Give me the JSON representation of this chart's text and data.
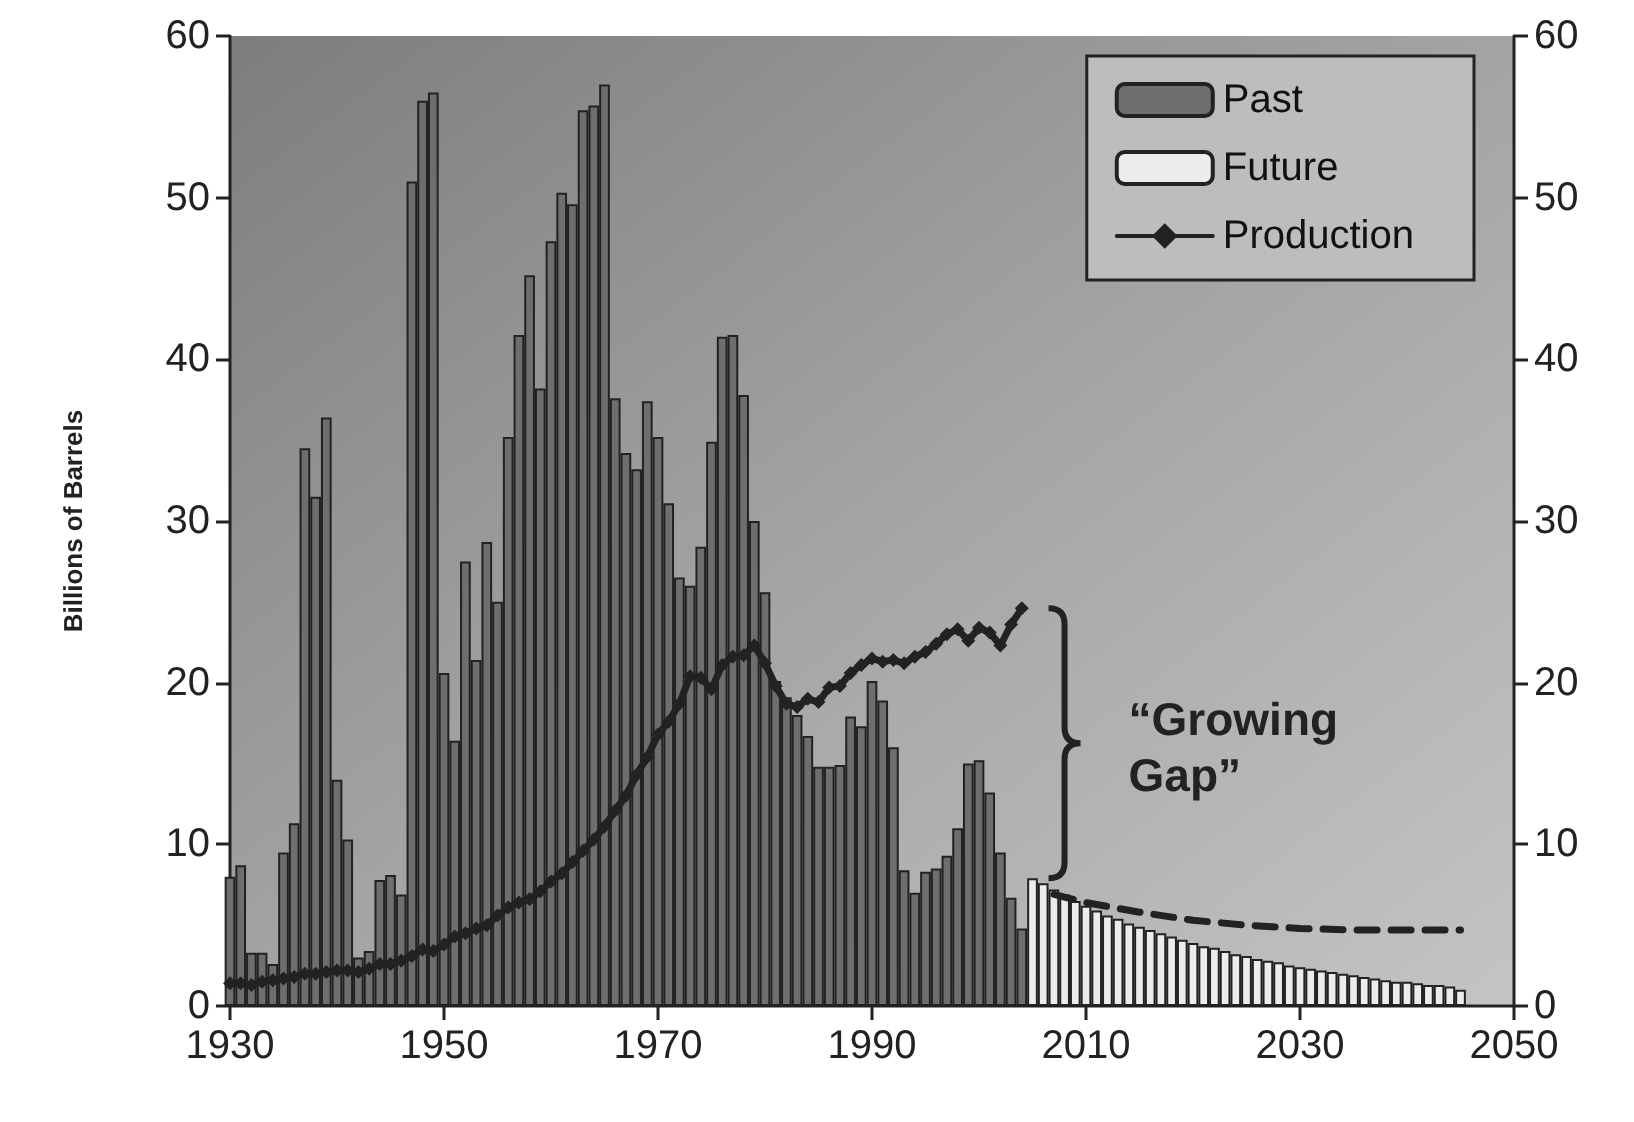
{
  "chart_data": {
    "type": "bar",
    "ylabel": "Billions of Barrels",
    "xlim": [
      1930,
      2050
    ],
    "xticks": [
      1930,
      1950,
      1970,
      1990,
      2010,
      2030,
      2050
    ],
    "ylim": [
      0,
      60
    ],
    "yticks": [
      0,
      10,
      20,
      30,
      40,
      50,
      60
    ],
    "y2lim": [
      0,
      60
    ],
    "y2ticks": [
      0,
      10,
      20,
      30,
      40,
      50,
      60
    ],
    "legend": "top right",
    "grid": false,
    "annotations": [
      "“Growing Gap”"
    ],
    "series": [
      {
        "name": "Past",
        "color": "#6e6e6e",
        "x": [
          1930,
          1931,
          1932,
          1933,
          1934,
          1935,
          1936,
          1937,
          1938,
          1939,
          1940,
          1941,
          1942,
          1943,
          1944,
          1945,
          1946,
          1947,
          1948,
          1949,
          1950,
          1951,
          1952,
          1953,
          1954,
          1955,
          1956,
          1957,
          1958,
          1959,
          1960,
          1961,
          1962,
          1963,
          1964,
          1965,
          1966,
          1967,
          1968,
          1969,
          1970,
          1971,
          1972,
          1973,
          1974,
          1975,
          1976,
          1977,
          1978,
          1979,
          1980,
          1981,
          1982,
          1983,
          1984,
          1985,
          1986,
          1987,
          1988,
          1989,
          1990,
          1991,
          1992,
          1993,
          1994,
          1995,
          1996,
          1997,
          1998,
          1999,
          2000,
          2001,
          2002,
          2003,
          2004
        ],
        "values": [
          8,
          8.7,
          3.3,
          3.3,
          2.6,
          9.5,
          11.3,
          34.5,
          31.5,
          36.4,
          14,
          10.3,
          3,
          3.4,
          7.8,
          8.1,
          6.9,
          51,
          56,
          56.5,
          20.6,
          16.4,
          27.5,
          21.4,
          28.7,
          25,
          35.2,
          41.5,
          45.2,
          38.2,
          47.3,
          50.3,
          49.6,
          55.4,
          55.7,
          57,
          37.6,
          34.2,
          33.2,
          37.4,
          35.2,
          31.1,
          26.5,
          26,
          28.4,
          34.9,
          41.4,
          41.5,
          37.8,
          30,
          25.6,
          20.1,
          19.1,
          18,
          16.7,
          14.8,
          14.8,
          14.9,
          17.9,
          17.3,
          20.1,
          18.9,
          16,
          8.4,
          7,
          8.3,
          8.5,
          9.3,
          11,
          15,
          15.2,
          13.2,
          9.5,
          6.7,
          4.8
        ]
      },
      {
        "name": "Future",
        "color": "#ececec",
        "x": [
          2005,
          2006,
          2007,
          2008,
          2009,
          2010,
          2011,
          2012,
          2013,
          2014,
          2015,
          2016,
          2017,
          2018,
          2019,
          2020,
          2021,
          2022,
          2023,
          2024,
          2025,
          2026,
          2027,
          2028,
          2029,
          2030,
          2031,
          2032,
          2033,
          2034,
          2035,
          2036,
          2037,
          2038,
          2039,
          2040,
          2041,
          2042,
          2043,
          2044,
          2045
        ],
        "values": [
          7.9,
          7.6,
          7.2,
          6.9,
          6.5,
          6.2,
          5.9,
          5.6,
          5.4,
          5.1,
          4.9,
          4.7,
          4.5,
          4.3,
          4.1,
          3.9,
          3.7,
          3.6,
          3.4,
          3.2,
          3.1,
          2.9,
          2.8,
          2.7,
          2.5,
          2.4,
          2.3,
          2.2,
          2.1,
          2,
          1.9,
          1.8,
          1.7,
          1.6,
          1.5,
          1.5,
          1.4,
          1.3,
          1.3,
          1.2,
          1
        ]
      },
      {
        "name": "Production",
        "type": "line",
        "color": "#222222",
        "marker": "diamond",
        "line_style": "solid",
        "x": [
          1930,
          1931,
          1932,
          1933,
          1934,
          1935,
          1936,
          1937,
          1938,
          1939,
          1940,
          1941,
          1942,
          1943,
          1944,
          1945,
          1946,
          1947,
          1948,
          1949,
          1950,
          1951,
          1952,
          1953,
          1954,
          1955,
          1956,
          1957,
          1958,
          1959,
          1960,
          1961,
          1962,
          1963,
          1964,
          1965,
          1966,
          1967,
          1968,
          1969,
          1970,
          1971,
          1972,
          1973,
          1974,
          1975,
          1976,
          1977,
          1978,
          1979,
          1980,
          1981,
          1982,
          1983,
          1984,
          1985,
          1986,
          1987,
          1988,
          1989,
          1990,
          1991,
          1992,
          1993,
          1994,
          1995,
          1996,
          1997,
          1998,
          1999,
          2000,
          2001,
          2002,
          2003,
          2004
        ],
        "values": [
          1.4,
          1.4,
          1.3,
          1.5,
          1.6,
          1.7,
          1.8,
          2,
          2,
          2.1,
          2.2,
          2.2,
          2.1,
          2.3,
          2.6,
          2.6,
          2.8,
          3.1,
          3.5,
          3.4,
          3.8,
          4.3,
          4.5,
          4.8,
          5,
          5.6,
          6.1,
          6.4,
          6.6,
          7.1,
          7.7,
          8.2,
          8.9,
          9.6,
          10.3,
          11.1,
          12.1,
          13,
          14.3,
          15.4,
          16.8,
          17.6,
          18.7,
          20.4,
          20.3,
          19.6,
          21.1,
          21.6,
          21.7,
          22.3,
          21.2,
          19.8,
          18.7,
          18.5,
          19,
          18.8,
          19.7,
          19.8,
          20.6,
          21.1,
          21.5,
          21.3,
          21.4,
          21.2,
          21.6,
          21.9,
          22.4,
          23,
          23.3,
          22.6,
          23.4,
          23.1,
          22.3,
          23.6,
          24.6
        ]
      },
      {
        "type": "line",
        "color": "#222222",
        "marker": "none",
        "line_style": "dashed",
        "x": [
          2007,
          2010,
          2015,
          2020,
          2025,
          2030,
          2035,
          2045
        ],
        "values": [
          6.9,
          6.4,
          5.8,
          5.3,
          5,
          4.8,
          4.7,
          4.7
        ]
      }
    ]
  }
}
